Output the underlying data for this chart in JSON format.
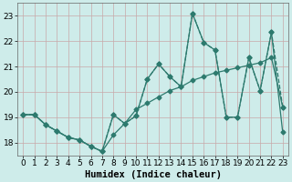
{
  "xlabel": "Humidex (Indice chaleur)",
  "line_color": "#2d7a6e",
  "bg_color": "#ceecea",
  "grid_color_major": "#c8a8a8",
  "ylim": [
    17.5,
    23.5
  ],
  "xlim": [
    -0.5,
    23.5
  ],
  "yticks": [
    18,
    19,
    20,
    21,
    22,
    23
  ],
  "xticks": [
    0,
    1,
    2,
    3,
    4,
    5,
    6,
    7,
    8,
    9,
    10,
    11,
    12,
    13,
    14,
    15,
    16,
    17,
    18,
    19,
    20,
    21,
    22,
    23
  ],
  "x": [
    0,
    1,
    2,
    3,
    4,
    5,
    6,
    7,
    8,
    9,
    10,
    11,
    12,
    13,
    14,
    15,
    16,
    17,
    18,
    19,
    20,
    21,
    22,
    23
  ],
  "line1_y": [
    19.1,
    19.1,
    18.7,
    18.45,
    18.2,
    18.1,
    17.85,
    17.65,
    19.1,
    18.75,
    19.05,
    20.5,
    21.1,
    20.6,
    20.2,
    23.1,
    21.95,
    21.65,
    19.0,
    19.0,
    21.35,
    20.05,
    22.35,
    18.4
  ],
  "line2_y": [
    19.1,
    19.1,
    18.7,
    18.45,
    18.2,
    18.1,
    17.85,
    17.65,
    18.3,
    18.75,
    19.3,
    19.55,
    19.8,
    20.05,
    20.2,
    20.45,
    20.6,
    20.75,
    20.85,
    20.95,
    21.05,
    21.15,
    21.35,
    19.4
  ],
  "line3_y": [
    19.1,
    19.1,
    18.7,
    18.45,
    18.2,
    18.1,
    17.85,
    17.65,
    19.1,
    18.75,
    19.05,
    20.5,
    21.1,
    20.6,
    20.2,
    23.1,
    21.95,
    21.65,
    19.0,
    19.0,
    21.35,
    20.05,
    22.35,
    19.4
  ],
  "marker_size": 2.5,
  "line_width": 0.9,
  "label_fontsize": 7.5,
  "tick_fontsize": 6.5
}
